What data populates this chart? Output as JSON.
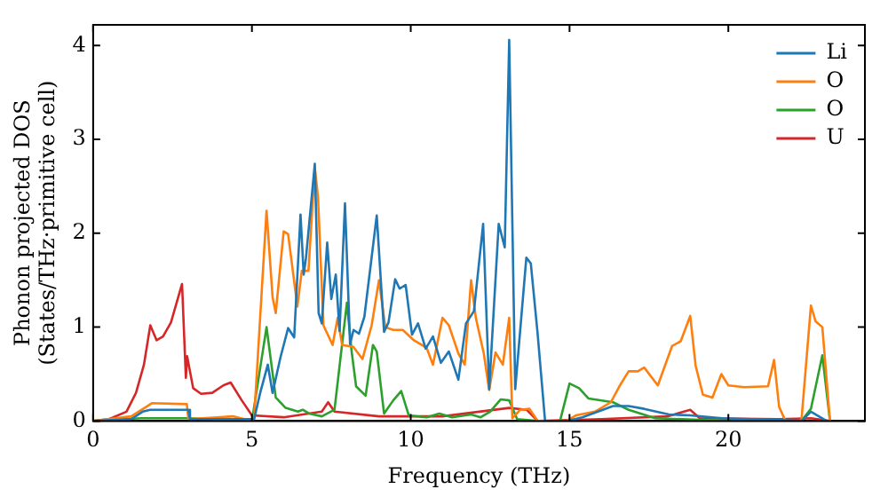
{
  "chart_data": {
    "type": "line",
    "xlabel": "Frequency (THz)",
    "ylabel": "Phonon projected DOS\n(States/THz·primitive cell)",
    "xlim": [
      0,
      24.3
    ],
    "ylim": [
      0,
      4.22
    ],
    "xticks": [
      0,
      5,
      10,
      15,
      20
    ],
    "yticks": [
      0,
      1,
      2,
      3,
      4
    ],
    "legend": "top right",
    "marker": "none",
    "line_style": "solid",
    "series": [
      {
        "name": "Li",
        "color": "#1f77b4",
        "x": [
          0,
          1.2,
          1.56,
          1.8,
          3.0,
          3.05,
          5.0,
          5.07,
          5.26,
          5.5,
          5.65,
          5.9,
          6.14,
          6.33,
          6.53,
          6.63,
          6.7,
          6.98,
          7.1,
          7.2,
          7.37,
          7.5,
          7.64,
          7.76,
          7.93,
          8.09,
          8.2,
          8.37,
          8.54,
          8.93,
          9.16,
          9.3,
          9.51,
          9.65,
          9.84,
          10.04,
          10.23,
          10.47,
          10.7,
          10.95,
          11.2,
          11.5,
          11.74,
          11.99,
          12.28,
          12.47,
          12.77,
          12.96,
          13.1,
          13.29,
          13.64,
          13.78,
          13.99,
          14.23,
          14.9,
          15.4,
          16.37,
          16.86,
          17.35,
          18.13,
          18.8,
          19.8,
          21.6,
          22.3,
          22.6,
          23.1
        ],
        "values": [
          0,
          0.02,
          0.1,
          0.12,
          0.12,
          0.02,
          0.02,
          0.02,
          0.3,
          0.6,
          0.3,
          0.68,
          0.99,
          0.89,
          2.2,
          1.56,
          1.73,
          2.74,
          1.15,
          1.04,
          1.9,
          1.3,
          1.56,
          0.96,
          2.32,
          0.82,
          0.97,
          0.93,
          1.11,
          2.19,
          0.95,
          1.05,
          1.51,
          1.41,
          1.45,
          0.92,
          1.04,
          0.77,
          0.9,
          0.62,
          0.74,
          0.44,
          1.04,
          1.17,
          2.1,
          0.34,
          2.1,
          1.85,
          4.06,
          0.34,
          1.74,
          1.68,
          0.95,
          0,
          0,
          0.04,
          0.16,
          0.16,
          0.13,
          0.07,
          0.06,
          0.03,
          0.01,
          0,
          0.1,
          0
        ]
      },
      {
        "name": "O",
        "color": "#ff7f0e",
        "x": [
          0,
          1.2,
          1.85,
          2.95,
          3.0,
          4.4,
          5.0,
          5.07,
          5.46,
          5.65,
          5.75,
          6.0,
          6.14,
          6.43,
          6.57,
          6.78,
          6.98,
          7.08,
          7.25,
          7.54,
          7.7,
          7.84,
          8.19,
          8.48,
          8.77,
          9.0,
          9.2,
          9.45,
          9.75,
          10.1,
          10.5,
          10.7,
          11.0,
          11.2,
          11.5,
          11.7,
          11.9,
          12.05,
          12.3,
          12.47,
          12.67,
          12.9,
          13.1,
          13.2,
          13.45,
          13.74,
          14.0,
          14.9,
          15.2,
          15.8,
          16.3,
          16.57,
          16.86,
          17.15,
          17.35,
          17.78,
          18.23,
          18.5,
          18.8,
          18.97,
          19.2,
          19.5,
          19.78,
          20.0,
          20.5,
          21.25,
          21.44,
          21.6,
          21.8,
          22.3,
          22.6,
          22.75,
          22.96,
          23.2
        ],
        "values": [
          0,
          0.05,
          0.19,
          0.18,
          0.02,
          0.05,
          0,
          0.03,
          2.24,
          1.32,
          1.15,
          2.02,
          1.99,
          1.22,
          1.6,
          1.6,
          2.7,
          2.39,
          1.02,
          0.81,
          1.1,
          0.81,
          0.79,
          0.66,
          1.02,
          1.5,
          1.0,
          0.97,
          0.97,
          0.86,
          0.78,
          0.6,
          1.1,
          1.02,
          0.72,
          0.6,
          1.5,
          1.1,
          0.72,
          0.33,
          0.73,
          0.6,
          1.1,
          0.03,
          0.12,
          0.13,
          0,
          0,
          0.06,
          0.1,
          0.2,
          0.37,
          0.53,
          0.53,
          0.57,
          0.38,
          0.8,
          0.85,
          1.12,
          0.59,
          0.28,
          0.25,
          0.5,
          0.38,
          0.36,
          0.37,
          0.65,
          0.15,
          0,
          0,
          1.23,
          1.06,
          1.0,
          0
        ]
      },
      {
        "name": "O",
        "color": "#2ca02c",
        "x": [
          0,
          1.5,
          3.0,
          5.0,
          5.46,
          5.75,
          6.06,
          6.45,
          6.6,
          6.8,
          7.2,
          7.6,
          7.99,
          8.14,
          8.28,
          8.58,
          8.81,
          8.93,
          9.16,
          9.45,
          9.7,
          9.94,
          10.5,
          10.9,
          11.3,
          11.9,
          12.2,
          12.5,
          12.83,
          13.1,
          13.35,
          14.0,
          14.7,
          15.0,
          15.3,
          15.6,
          16.37,
          16.86,
          17.7,
          19.3,
          22.3,
          22.6,
          22.96,
          23.2
        ],
        "values": [
          0,
          0.03,
          0.03,
          0,
          1.0,
          0.25,
          0.14,
          0.1,
          0.12,
          0.08,
          0.05,
          0.12,
          1.26,
          0.74,
          0.37,
          0.27,
          0.81,
          0.74,
          0.08,
          0.22,
          0.32,
          0.06,
          0.04,
          0.08,
          0.04,
          0.07,
          0.04,
          0.1,
          0.23,
          0.22,
          0.02,
          0,
          0,
          0.4,
          0.35,
          0.24,
          0.2,
          0.12,
          0.03,
          0.01,
          0,
          0.13,
          0.7,
          0
        ]
      },
      {
        "name": "U",
        "color": "#d62728",
        "x": [
          0,
          0.5,
          1.05,
          1.35,
          1.6,
          1.8,
          2.0,
          2.2,
          2.45,
          2.8,
          2.92,
          2.96,
          3.15,
          3.4,
          3.75,
          4.1,
          4.33,
          4.68,
          5.0,
          6.0,
          7.2,
          7.4,
          7.6,
          9.0,
          11.0,
          13.1,
          13.65,
          14.0,
          16.0,
          18.1,
          18.8,
          19.1,
          21.6,
          22.6,
          23.2
        ],
        "values": [
          0,
          0.02,
          0.1,
          0.3,
          0.6,
          1.02,
          0.86,
          0.9,
          1.05,
          1.46,
          0.46,
          0.69,
          0.35,
          0.29,
          0.3,
          0.38,
          0.41,
          0.22,
          0.06,
          0.04,
          0.1,
          0.2,
          0.1,
          0.05,
          0.05,
          0.14,
          0.12,
          0,
          0.02,
          0.05,
          0.12,
          0.03,
          0.02,
          0.03,
          0
        ]
      }
    ]
  }
}
